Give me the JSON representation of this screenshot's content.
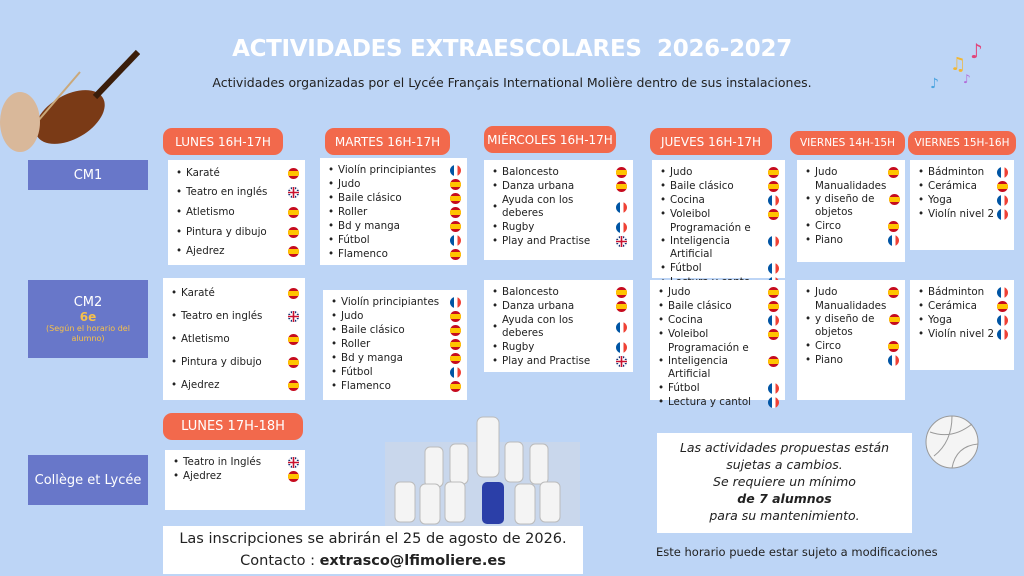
{
  "header": {
    "title": "ACTIVIDADES EXTRAESCOLARES  2026-2027",
    "subtitle": "Actividades organizadas por el Lycée Français International Molière dentro de sus instalaciones."
  },
  "days": [
    "LUNES 16H-17H",
    "MARTES 16H-17H",
    "MIÉRCOLES 16H-17H",
    "JUEVES 16H-17H",
    "VIERNES 14H-15H",
    "VIERNES 15H-16H"
  ],
  "groups": [
    {
      "label": "CM1",
      "cells": [
        [
          {
            "name": "Karaté",
            "flag": "es"
          },
          {
            "name": "Teatro en inglés",
            "flag": "gb"
          },
          {
            "name": "Atletismo",
            "flag": "es"
          },
          {
            "name": "Pintura y dibujo",
            "flag": "es"
          },
          {
            "name": "Ajedrez",
            "flag": "es"
          }
        ],
        [
          {
            "name": "Violín principiantes",
            "flag": "fr"
          },
          {
            "name": "Judo",
            "flag": "es"
          },
          {
            "name": "Baile clásico",
            "flag": "es"
          },
          {
            "name": "Roller",
            "flag": "es"
          },
          {
            "name": "Bd y manga",
            "flag": "es"
          },
          {
            "name": "Fútbol",
            "flag": "fr"
          },
          {
            "name": "Flamenco",
            "flag": "es"
          }
        ],
        [
          {
            "name": "Baloncesto",
            "flag": "es"
          },
          {
            "name": "Danza urbana",
            "flag": "es"
          },
          {
            "name": "Ayuda con los deberes",
            "flag": "fr"
          },
          {
            "name": "Rugby",
            "flag": "fr"
          },
          {
            "name": "Play and Practise",
            "flag": "gb"
          }
        ],
        [
          {
            "name": "Judo",
            "flag": "es"
          },
          {
            "name": "Baile clásico",
            "flag": "es"
          },
          {
            "name": "Cocina",
            "flag": "fr"
          },
          {
            "name": "Voleibol",
            "flag": "es"
          },
          {
            "name": "Programación e Inteligencia Artificial",
            "flag": "fr"
          },
          {
            "name": "Fútbol",
            "flag": "fr"
          },
          {
            "name": "Lectura y canto",
            "flag": "fr"
          }
        ],
        [
          {
            "name": "Judo",
            "flag": "es"
          },
          {
            "name": "Manualidades y diseño de objetos",
            "flag": "es"
          },
          {
            "name": "Circo",
            "flag": "es"
          },
          {
            "name": "Piano",
            "flag": "fr"
          }
        ],
        [
          {
            "name": "Bádminton",
            "flag": "fr"
          },
          {
            "name": "Cerámica",
            "flag": "es"
          },
          {
            "name": "Yoga",
            "flag": "fr"
          },
          {
            "name": "Violín nivel 2",
            "flag": "fr"
          }
        ]
      ]
    },
    {
      "label": "CM2",
      "grade": "6e",
      "note": "(Según el horario del alumno)",
      "cells": [
        [
          {
            "name": "Karaté",
            "flag": "es"
          },
          {
            "name": "Teatro en inglés",
            "flag": "gb"
          },
          {
            "name": "Atletismo",
            "flag": "es"
          },
          {
            "name": "Pintura y dibujo",
            "flag": "es"
          },
          {
            "name": "Ajedrez",
            "flag": "es"
          }
        ],
        [
          {
            "name": "Violín principiantes",
            "flag": "fr"
          },
          {
            "name": "Judo",
            "flag": "es"
          },
          {
            "name": "Baile clásico",
            "flag": "es"
          },
          {
            "name": "Roller",
            "flag": "es"
          },
          {
            "name": "Bd y manga",
            "flag": "es"
          },
          {
            "name": "Fútbol",
            "flag": "fr"
          },
          {
            "name": "Flamenco",
            "flag": "es"
          }
        ],
        [
          {
            "name": "Baloncesto",
            "flag": "es"
          },
          {
            "name": "Danza urbana",
            "flag": "es"
          },
          {
            "name": "Ayuda con los deberes",
            "flag": "fr"
          },
          {
            "name": "Rugby",
            "flag": "fr"
          },
          {
            "name": "Play and Practise",
            "flag": "gb"
          }
        ],
        [
          {
            "name": "Judo",
            "flag": "es"
          },
          {
            "name": "Baile clásico",
            "flag": "es"
          },
          {
            "name": "Cocina",
            "flag": "fr"
          },
          {
            "name": "Voleibol",
            "flag": "es"
          },
          {
            "name": "Programación e Inteligencia Artificial",
            "flag": "es"
          },
          {
            "name": "Fútbol",
            "flag": "fr"
          },
          {
            "name": "Lectura y cantol",
            "flag": "fr"
          }
        ],
        [
          {
            "name": "Judo",
            "flag": "es"
          },
          {
            "name": "Manualidades y diseño de objetos",
            "flag": "es"
          },
          {
            "name": "Circo",
            "flag": "es"
          },
          {
            "name": "Piano",
            "flag": "fr"
          }
        ],
        [
          {
            "name": "Bádminton",
            "flag": "fr"
          },
          {
            "name": "Cerámica",
            "flag": "es"
          },
          {
            "name": "Yoga",
            "flag": "fr"
          },
          {
            "name": "Violín nivel 2",
            "flag": "fr"
          }
        ]
      ]
    },
    {
      "label": "Collège et Lycée",
      "day": "LUNES 17H-18H",
      "cells": [
        [
          {
            "name": "Teatro in Inglés",
            "flag": "gb"
          },
          {
            "name": "Ajedrez",
            "flag": "es"
          }
        ]
      ]
    }
  ],
  "notice": {
    "lines": [
      "Las actividades propuestas están",
      "sujetas a cambios.",
      "Se requiere un mínimo"
    ],
    "emphasis": "de 7 alumnos",
    "end": "para su mantenimiento."
  },
  "registration": {
    "text": "Las inscripciones se abrirán el 25 de agosto de 2026.",
    "contact_label": "Contacto :",
    "email": "extrasco@lfimoliere.es"
  },
  "disclaimer": "Este horario puede estar sujeto a modificaciones"
}
